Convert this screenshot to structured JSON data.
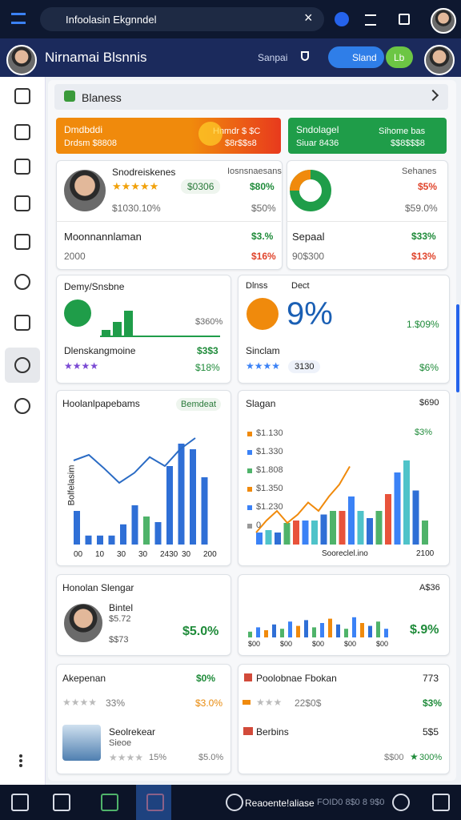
{
  "browser": {
    "url": "Infoolasin Ekgnndel"
  },
  "header": {
    "title": "Nirnamai Blsnnis",
    "link": "Sanpai",
    "button1": "Sland",
    "button2": "Lb"
  },
  "section": {
    "title": "Blaness"
  },
  "banners": [
    {
      "title": "Dmdbddi",
      "sub": "Drdsm $8808",
      "right": "Hnmdr $ $C",
      "right_sub": "$8r$$s8"
    },
    {
      "title": "Sndolagel",
      "sub": "Siuar 8436",
      "right": "Sihome bas",
      "right_sub": "$$8$$$8"
    }
  ],
  "profile_card": {
    "name": "Snodreiskenes",
    "badge": "$0306",
    "label": "Iosnsnaesans",
    "v1": "$80%",
    "sub": "$1030.10%",
    "v2": "$50%",
    "row_title": "Moonnannlaman",
    "row_v1": "$3.%",
    "row_sub": "2000",
    "row_v2": "$16%"
  },
  "donut_card": {
    "label": "Sehanes",
    "v1": "$5%",
    "v2": "$59.0%",
    "row_title": "Sepaal",
    "row_v1": "$33%",
    "row_sub": "90$300",
    "row_v2": "$13%"
  },
  "growth_card": {
    "title": "Demy/Snsbne",
    "value": "$360%",
    "row_title": "Dlenskangmoine",
    "row_v1": "$3$3",
    "row_v2": "$18%",
    "bars": [
      20,
      45,
      80
    ]
  },
  "stat_card": {
    "label1": "Dlnss",
    "label2": "Dect",
    "big": "9%",
    "value": "1.$09%",
    "row_title": "Sinclam",
    "badge": "3130",
    "row_v": "$6%"
  },
  "chart_left": {
    "title": "Hoolanlpapebams",
    "button": "Bemdeat",
    "ylabel": "Bolfelasim",
    "xlabels": [
      "00",
      "10",
      "30",
      "30",
      "2430",
      "30",
      "200"
    ],
    "ylim": [
      0,
      100
    ],
    "bars": [
      30,
      8,
      8,
      8,
      18,
      35,
      25,
      20,
      70,
      90,
      85,
      60
    ],
    "line": [
      75,
      80,
      68,
      55,
      64,
      78,
      70,
      85,
      95
    ]
  },
  "chart_right": {
    "title": "Slagan",
    "right": "$690",
    "badge": "$3%",
    "legend": [
      "$1.130",
      "$1.330",
      "$1.808",
      "$1.350",
      "$1.230",
      "0"
    ],
    "xlabel": "Sooreclel.ino",
    "xend": "2100",
    "ylim": [
      0,
      100
    ],
    "bars": [
      10,
      12,
      10,
      18,
      20,
      20,
      20,
      25,
      28,
      28,
      40,
      28,
      22,
      28,
      42,
      60,
      70,
      45,
      20
    ],
    "line": [
      10,
      20,
      28,
      18,
      25,
      35,
      28,
      40,
      50,
      65
    ]
  },
  "person_card": {
    "title": "Honolan Slengar",
    "sub1": "Bintel",
    "sub2": "$5.72",
    "sub3": "$$73",
    "value": "$5.0%"
  },
  "mini_chart": {
    "title": "A$36",
    "value": "$.9%",
    "xlabels": [
      "$00",
      "$00",
      "$00",
      "$00",
      "$00"
    ],
    "ylim": [
      0,
      100
    ],
    "bars": [
      20,
      35,
      25,
      45,
      30,
      55,
      40,
      60,
      35,
      50,
      65,
      45,
      30,
      70,
      50,
      40,
      55,
      30
    ]
  },
  "rating_card": {
    "title": "Akepenan",
    "v1": "$0%",
    "rating": "33%",
    "v2": "$3.0%",
    "item": "Seolrekear",
    "item_sub": "Sieoe",
    "item_rating": "15%",
    "item_v": "$5.0%"
  },
  "list_card": {
    "title": "Poolobnae Fbokan",
    "v1": "773",
    "rating": "22$0$",
    "v2": "$3%",
    "item": "Berbins",
    "item_v1": "5$5",
    "item_sub": "$$00",
    "item_v2": "300%"
  },
  "taskbar": {
    "label": "Reaoente!aliase",
    "sub": "FOID0 8$0 8 9$0"
  }
}
